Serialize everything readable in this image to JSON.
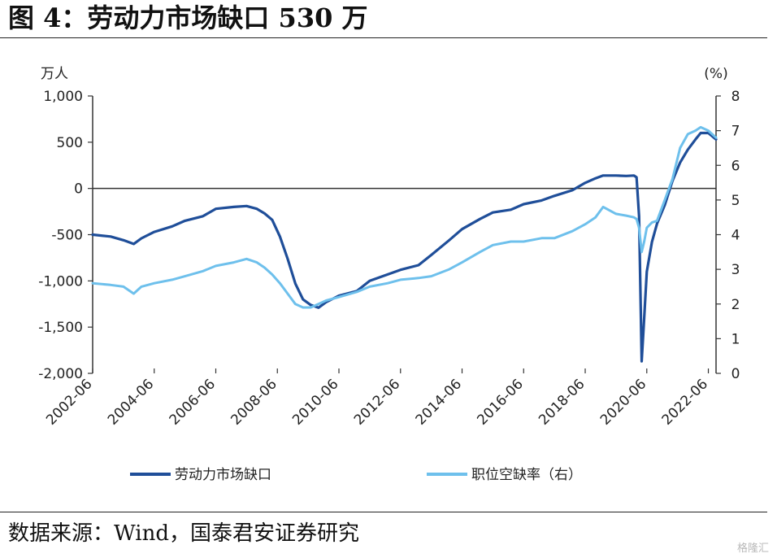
{
  "figure": {
    "title": "图 4：劳动力市场缺口 530 万",
    "source": "数据来源：Wind，国泰君安证券研究",
    "watermark": "格隆汇"
  },
  "chart_data": {
    "type": "line",
    "title": "",
    "xlabel": "",
    "ylabel_left": "万人",
    "ylabel_right": "(%)",
    "ylim_left": [
      -2000,
      1000
    ],
    "ylim_right": [
      0,
      8
    ],
    "xlim": [
      "2002-06",
      "2022-09"
    ],
    "grid": false,
    "legend_position": "bottom",
    "x_ticks": [
      "2002-06",
      "2004-06",
      "2006-06",
      "2008-06",
      "2010-06",
      "2012-06",
      "2014-06",
      "2016-06",
      "2018-06",
      "2020-06",
      "2022-06"
    ],
    "y_ticks_left": [
      "1,000",
      "500",
      "0",
      "-500",
      "-1,000",
      "-1,500",
      "-2,000"
    ],
    "y_ticks_right": [
      "8",
      "7",
      "6",
      "5",
      "4",
      "3",
      "2",
      "1",
      "0"
    ],
    "series": [
      {
        "name": "劳动力市场缺口",
        "axis": "left",
        "color": "#1f4e99",
        "x": [
          "2002-06",
          "2003-01",
          "2003-06",
          "2003-10",
          "2004-01",
          "2004-06",
          "2005-01",
          "2005-06",
          "2006-01",
          "2006-06",
          "2007-01",
          "2007-06",
          "2007-10",
          "2008-01",
          "2008-04",
          "2008-07",
          "2008-10",
          "2009-01",
          "2009-04",
          "2009-07",
          "2009-10",
          "2010-01",
          "2010-06",
          "2011-01",
          "2011-06",
          "2012-01",
          "2012-06",
          "2013-01",
          "2013-06",
          "2014-01",
          "2014-06",
          "2015-01",
          "2015-06",
          "2016-01",
          "2016-06",
          "2017-01",
          "2017-06",
          "2018-01",
          "2018-06",
          "2018-10",
          "2019-01",
          "2019-06",
          "2019-10",
          "2020-01",
          "2020-02",
          "2020-03",
          "2020-04",
          "2020-05",
          "2020-06",
          "2020-08",
          "2020-10",
          "2021-01",
          "2021-04",
          "2021-07",
          "2021-10",
          "2022-01",
          "2022-03",
          "2022-06",
          "2022-09"
        ],
        "values": [
          -500,
          -520,
          -560,
          -600,
          -540,
          -470,
          -410,
          -350,
          -300,
          -220,
          -200,
          -190,
          -220,
          -270,
          -340,
          -520,
          -760,
          -1030,
          -1200,
          -1260,
          -1290,
          -1230,
          -1160,
          -1110,
          -1000,
          -930,
          -880,
          -830,
          -720,
          -560,
          -440,
          -330,
          -260,
          -230,
          -170,
          -130,
          -80,
          -20,
          60,
          110,
          140,
          140,
          135,
          140,
          120,
          -300,
          -1870,
          -1400,
          -900,
          -580,
          -380,
          -180,
          80,
          280,
          420,
          530,
          600,
          600,
          530
        ]
      },
      {
        "name": "职位空缺率（右）",
        "axis": "right",
        "color": "#6ec0ec",
        "x": [
          "2002-06",
          "2003-01",
          "2003-06",
          "2003-10",
          "2004-01",
          "2004-06",
          "2005-01",
          "2005-06",
          "2006-01",
          "2006-06",
          "2007-01",
          "2007-06",
          "2007-10",
          "2008-01",
          "2008-04",
          "2008-07",
          "2008-10",
          "2009-01",
          "2009-04",
          "2009-07",
          "2009-10",
          "2010-01",
          "2010-06",
          "2011-01",
          "2011-06",
          "2012-01",
          "2012-06",
          "2013-01",
          "2013-06",
          "2014-01",
          "2014-06",
          "2015-01",
          "2015-06",
          "2016-01",
          "2016-06",
          "2017-01",
          "2017-06",
          "2018-01",
          "2018-06",
          "2018-10",
          "2019-01",
          "2019-06",
          "2019-10",
          "2020-01",
          "2020-02",
          "2020-03",
          "2020-04",
          "2020-05",
          "2020-06",
          "2020-08",
          "2020-10",
          "2021-01",
          "2021-04",
          "2021-07",
          "2021-10",
          "2022-01",
          "2022-03",
          "2022-06",
          "2022-09"
        ],
        "values": [
          2.6,
          2.55,
          2.5,
          2.3,
          2.5,
          2.6,
          2.7,
          2.8,
          2.95,
          3.1,
          3.2,
          3.3,
          3.2,
          3.05,
          2.85,
          2.6,
          2.3,
          2.0,
          1.9,
          1.9,
          2.0,
          2.1,
          2.2,
          2.35,
          2.5,
          2.6,
          2.7,
          2.75,
          2.8,
          3.0,
          3.2,
          3.5,
          3.7,
          3.8,
          3.8,
          3.9,
          3.9,
          4.1,
          4.3,
          4.5,
          4.8,
          4.6,
          4.55,
          4.5,
          4.45,
          4.2,
          3.5,
          3.8,
          4.2,
          4.35,
          4.4,
          5.0,
          5.6,
          6.5,
          6.9,
          7.0,
          7.1,
          7.0,
          6.8
        ]
      }
    ]
  }
}
